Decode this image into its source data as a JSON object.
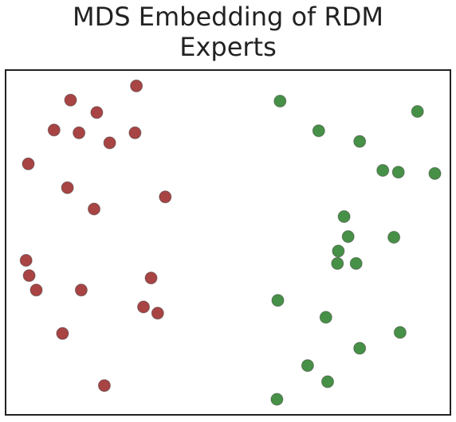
{
  "chart_data": {
    "type": "scatter",
    "title": "MDS Embedding of RDM",
    "subtitle": "Experts",
    "xlabel": "",
    "ylabel": "",
    "xlim": [
      0,
      100
    ],
    "ylim": [
      0,
      100
    ],
    "grid": false,
    "ticks": false,
    "series": [
      {
        "color": "#a33a3a",
        "points": [
          [
            29.4,
            95.4
          ],
          [
            14.6,
            91.3
          ],
          [
            20.5,
            87.7
          ],
          [
            10.9,
            82.6
          ],
          [
            16.5,
            81.8
          ],
          [
            23.4,
            78.9
          ],
          [
            29.1,
            81.8
          ],
          [
            5.1,
            72.8
          ],
          [
            13.9,
            65.9
          ],
          [
            35.9,
            63.2
          ],
          [
            19.9,
            59.7
          ],
          [
            4.6,
            44.8
          ],
          [
            5.3,
            40.4
          ],
          [
            6.9,
            36.2
          ],
          [
            17.0,
            36.2
          ],
          [
            32.7,
            39.7
          ],
          [
            31.0,
            31.3
          ],
          [
            34.2,
            29.5
          ],
          [
            12.8,
            23.6
          ],
          [
            22.2,
            8.5
          ]
        ]
      },
      {
        "color": "#3d8a3d",
        "points": [
          [
            61.7,
            91.0
          ],
          [
            92.6,
            88.0
          ],
          [
            70.4,
            82.4
          ],
          [
            79.6,
            79.3
          ],
          [
            84.8,
            70.9
          ],
          [
            88.3,
            70.4
          ],
          [
            96.5,
            70.0
          ],
          [
            76.1,
            57.5
          ],
          [
            77.0,
            51.7
          ],
          [
            87.3,
            51.5
          ],
          [
            74.8,
            47.5
          ],
          [
            74.6,
            43.9
          ],
          [
            78.8,
            43.9
          ],
          [
            61.2,
            33.2
          ],
          [
            72.0,
            28.3
          ],
          [
            88.7,
            23.9
          ],
          [
            79.6,
            19.3
          ],
          [
            67.9,
            14.3
          ],
          [
            72.4,
            9.6
          ],
          [
            61.0,
            4.5
          ]
        ]
      }
    ]
  }
}
